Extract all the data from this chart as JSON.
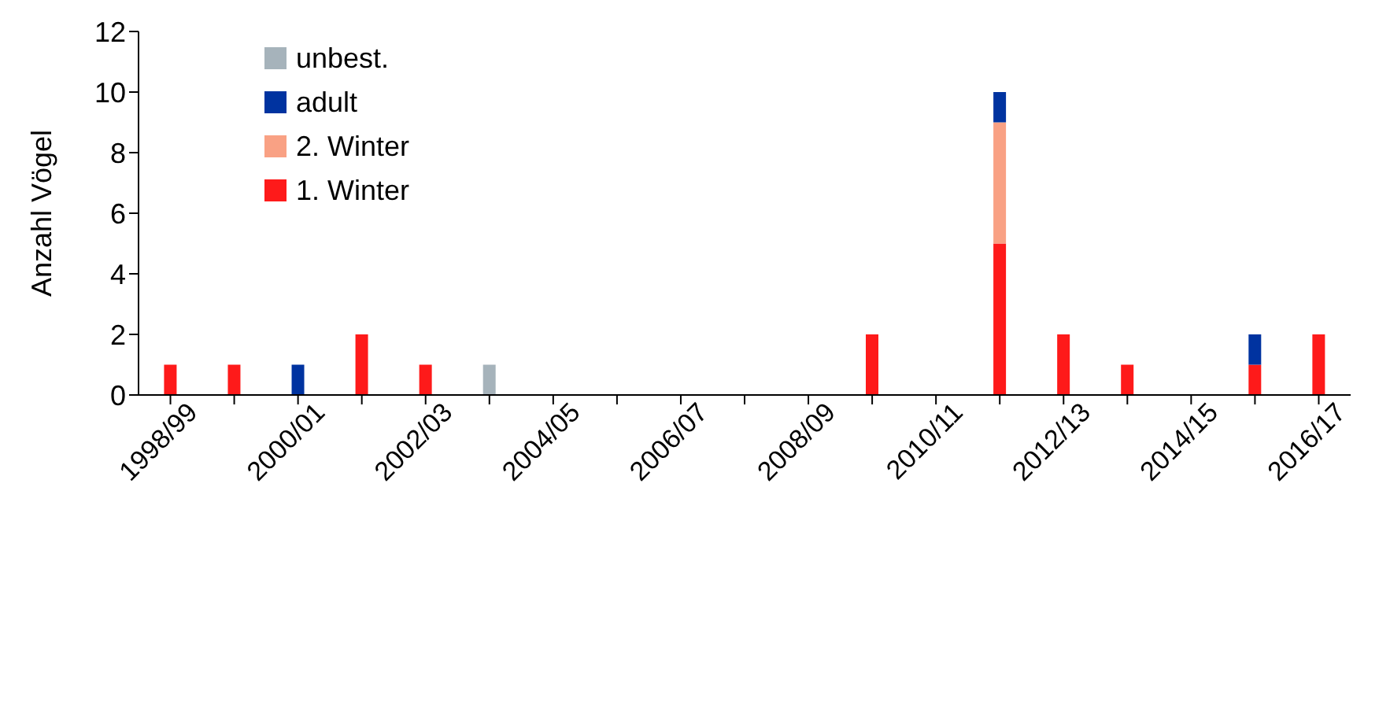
{
  "chart_data": {
    "type": "bar",
    "stacked": true,
    "ylabel": "Anzahl Vögel",
    "categories": [
      "1998/99",
      null,
      "2000/01",
      null,
      "2002/03",
      null,
      "2004/05",
      null,
      "2006/07",
      null,
      "2008/09",
      null,
      "2010/11",
      null,
      "2012/13",
      null,
      "2014/15",
      null,
      "2016/17"
    ],
    "series": [
      {
        "name": "1. Winter",
        "color": "#fe1a1a",
        "values": [
          1,
          1,
          0,
          2,
          1,
          0,
          0,
          0,
          0,
          0,
          0,
          2,
          0,
          5,
          2,
          1,
          0,
          1,
          2
        ]
      },
      {
        "name": "2. Winter",
        "color": "#f9a184",
        "values": [
          0,
          0,
          0,
          0,
          0,
          0,
          0,
          0,
          0,
          0,
          0,
          0,
          0,
          4,
          0,
          0,
          0,
          0,
          0
        ]
      },
      {
        "name": "adult",
        "color": "#0033a0",
        "values": [
          0,
          0,
          1,
          0,
          0,
          0,
          0,
          0,
          0,
          0,
          0,
          0,
          0,
          1,
          0,
          0,
          0,
          1,
          0
        ]
      },
      {
        "name": "unbest.",
        "color": "#a6b3bb",
        "values": [
          0,
          0,
          0,
          0,
          0,
          1,
          0,
          0,
          0,
          0,
          0,
          0,
          0,
          0,
          0,
          0,
          0,
          0,
          0
        ]
      }
    ],
    "ylim": [
      0,
      12
    ],
    "yticks": [
      0,
      2,
      4,
      6,
      8,
      10,
      12
    ],
    "grid": false,
    "legend": "top left"
  }
}
